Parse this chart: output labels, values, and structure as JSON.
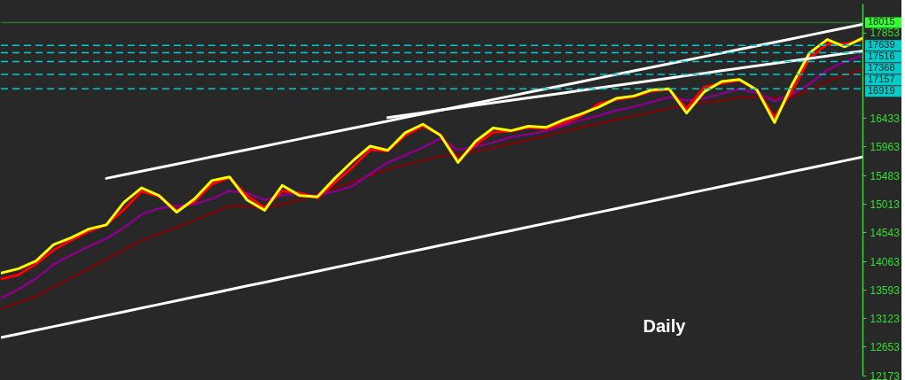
{
  "chart_data": {
    "type": "line",
    "categories": [
      null,
      null,
      null,
      null,
      null,
      null,
      null,
      null,
      null,
      null,
      null,
      null,
      null,
      null,
      null,
      null,
      null,
      null,
      null,
      null,
      null,
      null,
      null,
      null,
      null,
      null,
      null,
      null,
      null,
      null,
      null,
      null,
      null,
      null,
      null,
      null,
      null,
      null,
      null,
      null,
      null,
      null,
      null,
      null,
      null,
      null,
      null,
      null,
      null,
      null
    ],
    "ylim": [
      12173,
      18330
    ],
    "yticks": [
      17853,
      16433,
      15963,
      15483,
      15013,
      14543,
      14063,
      13593,
      13123,
      12653,
      12173
    ],
    "tick_labels": "y",
    "line_style": "solid",
    "series": [
      {
        "color": "#8b0000",
        "values": [
          13272,
          13380,
          13485,
          13640,
          13790,
          13941,
          14100,
          14255,
          14411,
          14520,
          14625,
          14740,
          14860,
          14981,
          14970,
          14952,
          15010,
          15080,
          15180,
          15280,
          15379,
          15480,
          15590,
          15660,
          15730,
          15806,
          15826,
          15880,
          15940,
          16010,
          16070,
          16140,
          16210,
          16280,
          16340,
          16405,
          16470,
          16530,
          16595,
          16650,
          16690,
          16730,
          16775,
          16780,
          16770,
          16780,
          16900,
          17040,
          17150,
          17230
        ]
      },
      {
        "color": "#8b008b",
        "values": [
          13457,
          13600,
          13780,
          14012,
          14170,
          14310,
          14440,
          14620,
          14840,
          14940,
          14980,
          15010,
          15100,
          15230,
          15190,
          15080,
          15160,
          15180,
          15150,
          15220,
          15308,
          15510,
          15700,
          15820,
          15950,
          16091,
          15906,
          15960,
          16030,
          16120,
          16165,
          16220,
          16305,
          16400,
          16475,
          16560,
          16620,
          16700,
          16780,
          16730,
          16760,
          16840,
          16915,
          16850,
          16718,
          16830,
          17000,
          17230,
          17370,
          17473
        ]
      },
      {
        "color": "#ff0000",
        "values": [
          13770,
          13840,
          14020,
          14250,
          14415,
          14560,
          14670,
          14920,
          15223,
          15140,
          14909,
          15050,
          15340,
          15450,
          15150,
          14952,
          15230,
          15194,
          15110,
          15370,
          15621,
          15910,
          15890,
          16150,
          16300,
          16160,
          15735,
          15990,
          16200,
          16219,
          16280,
          16260,
          16350,
          16470,
          16670,
          16740,
          16790,
          16880,
          16910,
          16590,
          16946,
          17010,
          17060,
          16903,
          16447,
          16880,
          17430,
          17658,
          17658,
          17729
        ]
      },
      {
        "color": "#ffff00",
        "values": [
          13870,
          13941,
          14069,
          14340,
          14454,
          14597,
          14667,
          15040,
          15280,
          15150,
          14877,
          15094,
          15400,
          15460,
          15080,
          14909,
          15320,
          15151,
          15130,
          15440,
          15721,
          15970,
          15900,
          16191,
          16333,
          16150,
          15700,
          16050,
          16270,
          16225,
          16300,
          16280,
          16405,
          16504,
          16618,
          16761,
          16800,
          16900,
          16920,
          16518,
          16870,
          17040,
          17074,
          16900,
          16362,
          16990,
          17515,
          17735,
          17615,
          17757
        ]
      },
      {
        "color": "#ffffff",
        "values": [
          null,
          null,
          null,
          null,
          null,
          null,
          15437,
          15497,
          15556,
          15615,
          15674,
          15733,
          15793,
          15852,
          15911,
          15970,
          16030,
          16089,
          16148,
          16208,
          16267,
          16326,
          16385,
          16445,
          16504,
          16563,
          16622,
          16682,
          16741,
          16800,
          16859,
          16919,
          16978,
          17037,
          17097,
          17156,
          17215,
          17274,
          17334,
          17393,
          17452,
          17511,
          17571,
          17630,
          17689,
          17748,
          17808,
          17867,
          17926,
          17985
        ]
      },
      {
        "color": "#ffffff",
        "values": [
          null,
          null,
          null,
          null,
          null,
          null,
          null,
          null,
          null,
          null,
          null,
          null,
          null,
          null,
          null,
          null,
          null,
          null,
          null,
          null,
          null,
          null,
          16443,
          16484,
          16525,
          16566,
          16606,
          16647,
          16688,
          16729,
          16770,
          16810,
          16851,
          16892,
          16933,
          16974,
          17014,
          17055,
          17096,
          17137,
          17177,
          17218,
          17259,
          17300,
          17341,
          17381,
          17422,
          17463,
          17504,
          17544
        ]
      },
      {
        "color": "#ffffff",
        "values": [
          12802,
          12863,
          12924,
          12985,
          13046,
          13107,
          13168,
          13229,
          13290,
          13351,
          13412,
          13473,
          13534,
          13595,
          13656,
          13717,
          13778,
          13839,
          13900,
          13961,
          14022,
          14083,
          14144,
          14205,
          14266,
          14327,
          14388,
          14449,
          14510,
          14571,
          14632,
          14693,
          14754,
          14815,
          14876,
          14937,
          14998,
          15059,
          15120,
          15181,
          15242,
          15303,
          15364,
          15425,
          15486,
          15547,
          15608,
          15669,
          15730,
          15792
        ]
      }
    ],
    "ref_lines": [
      {
        "axis": "y",
        "value": 18015,
        "label": "18015",
        "color": "#33ff33",
        "line_style": "solid"
      },
      {
        "axis": "y",
        "value": 17639,
        "label": "17639",
        "color": "#00cccc",
        "line_style": "dashed"
      },
      {
        "axis": "y",
        "value": 17516,
        "label": "17516",
        "color": "#00cccc",
        "line_style": "dashed"
      },
      {
        "axis": "y",
        "value": 17368,
        "label": "17368",
        "color": "#00cccc",
        "line_style": "dashed"
      },
      {
        "axis": "y",
        "value": 17157,
        "label": "17157",
        "color": "#00cccc",
        "line_style": "dashed"
      },
      {
        "axis": "y",
        "value": 16919,
        "label": "16919",
        "color": "#00cccc",
        "line_style": "dashed"
      }
    ],
    "annotations": [
      "Daily"
    ]
  }
}
